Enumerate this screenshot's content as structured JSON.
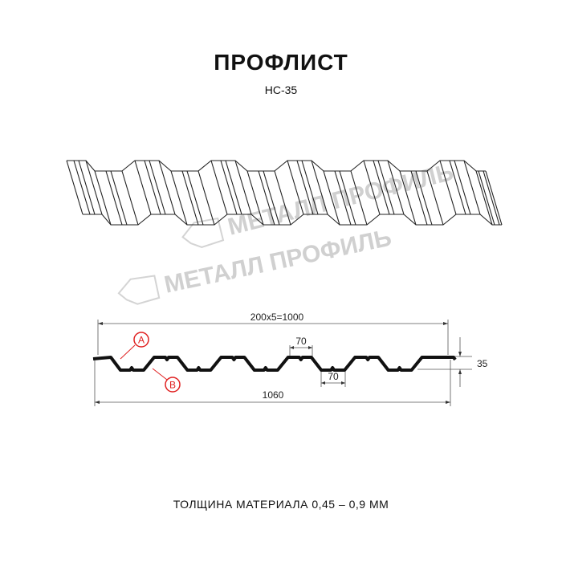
{
  "header": {
    "title": "ПРОФЛИСТ",
    "model": "НС-35"
  },
  "watermark": {
    "logo_text": "МЕТАЛЛ ПРОФИЛЬ",
    "color": "#d0d0d0"
  },
  "section": {
    "pitch_label": "200x5=1000",
    "total_width_label": "1060",
    "top_flat_label": "70",
    "bottom_flat_label": "70",
    "height_label": "35",
    "marker_a": "A",
    "marker_b": "B",
    "marker_color": "#e02020"
  },
  "footer": {
    "thickness_text": "ТОЛЩИНА МАТЕРИАЛА 0,45 – 0,9 ММ"
  }
}
